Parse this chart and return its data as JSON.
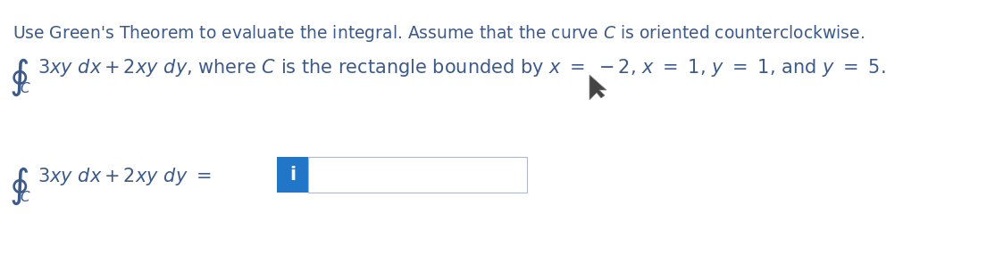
{
  "bg_color": "#ffffff",
  "text_color": "#3c5a8a",
  "line1": "Use Green's Theorem to evaluate the integral. Assume that the curve $C$ is oriented counterclockwise.",
  "input_box_color": "#2176c7",
  "input_box_text": "i",
  "input_box_text_color": "#ffffff",
  "font_size_line1": 13.5,
  "font_size_math": 15,
  "integral_fontsize": 22,
  "sub_C_fontsize": 11
}
